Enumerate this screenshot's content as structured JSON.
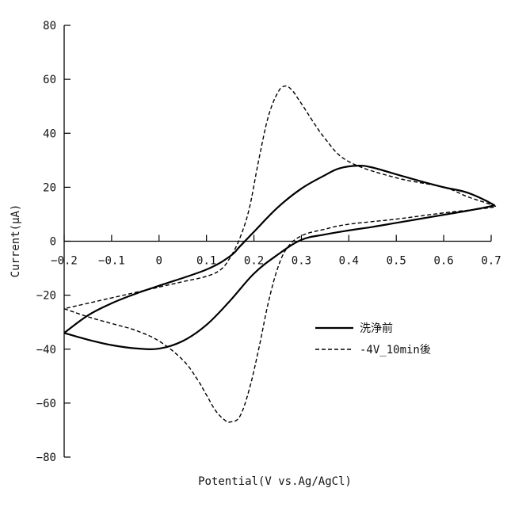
{
  "chart_data": {
    "type": "line",
    "xlabel": "Potential(V vs.Ag/AgCl)",
    "ylabel": "Current(μA)",
    "xlim": [
      -0.2,
      0.7
    ],
    "ylim": [
      -80,
      80
    ],
    "x_ticks": [
      "-0.2",
      "-0.1",
      "0",
      "0.1",
      "0.2",
      "0.3",
      "0.4",
      "0.5",
      "0.6",
      "0.7"
    ],
    "y_ticks": [
      "80",
      "60",
      "40",
      "20",
      "0",
      "-20",
      "-40",
      "-60",
      "-80"
    ],
    "grid": false,
    "legend_position": "right-center",
    "series": [
      {
        "name": "洗浄前",
        "style": "solid",
        "color": "#000000",
        "points": [
          [
            -0.2,
            -34
          ],
          [
            -0.15,
            -36.5
          ],
          [
            -0.1,
            -38.5
          ],
          [
            -0.05,
            -39.7
          ],
          [
            0.0,
            -39.8
          ],
          [
            0.05,
            -37
          ],
          [
            0.1,
            -31
          ],
          [
            0.15,
            -22
          ],
          [
            0.2,
            -12
          ],
          [
            0.25,
            -5
          ],
          [
            0.3,
            0.5
          ],
          [
            0.35,
            2.5
          ],
          [
            0.4,
            4
          ],
          [
            0.45,
            5.3
          ],
          [
            0.5,
            6.8
          ],
          [
            0.55,
            8.3
          ],
          [
            0.6,
            9.8
          ],
          [
            0.65,
            11.3
          ],
          [
            0.7,
            13
          ],
          [
            0.7,
            14
          ],
          [
            0.65,
            18
          ],
          [
            0.6,
            20
          ],
          [
            0.55,
            22.3
          ],
          [
            0.5,
            24.8
          ],
          [
            0.45,
            27.3
          ],
          [
            0.42,
            28
          ],
          [
            0.38,
            27
          ],
          [
            0.35,
            24.5
          ],
          [
            0.3,
            19.5
          ],
          [
            0.25,
            12.5
          ],
          [
            0.2,
            3.5
          ],
          [
            0.17,
            -2
          ],
          [
            0.15,
            -5.5
          ],
          [
            0.1,
            -10.5
          ],
          [
            0.0,
            -16.5
          ],
          [
            -0.05,
            -19.5
          ],
          [
            -0.1,
            -23
          ],
          [
            -0.15,
            -27.5
          ],
          [
            -0.2,
            -34
          ]
        ]
      },
      {
        "name": "-4V_10min後",
        "style": "dashed",
        "color": "#000000",
        "points": [
          [
            -0.2,
            -25
          ],
          [
            -0.15,
            -28
          ],
          [
            -0.1,
            -30.5
          ],
          [
            -0.05,
            -33
          ],
          [
            0.0,
            -37
          ],
          [
            0.05,
            -44
          ],
          [
            0.08,
            -51
          ],
          [
            0.1,
            -57
          ],
          [
            0.12,
            -63
          ],
          [
            0.14,
            -66.5
          ],
          [
            0.15,
            -67
          ],
          [
            0.17,
            -65
          ],
          [
            0.19,
            -55
          ],
          [
            0.21,
            -40
          ],
          [
            0.23,
            -23
          ],
          [
            0.25,
            -10
          ],
          [
            0.27,
            -2.5
          ],
          [
            0.3,
            2
          ],
          [
            0.35,
            4.5
          ],
          [
            0.4,
            6.3
          ],
          [
            0.5,
            8.2
          ],
          [
            0.6,
            10.5
          ],
          [
            0.7,
            12.5
          ],
          [
            0.7,
            13.5
          ],
          [
            0.65,
            16.5
          ],
          [
            0.6,
            20
          ],
          [
            0.5,
            23.5
          ],
          [
            0.4,
            29.5
          ],
          [
            0.35,
            38
          ],
          [
            0.3,
            51
          ],
          [
            0.28,
            56
          ],
          [
            0.265,
            57.5
          ],
          [
            0.25,
            55
          ],
          [
            0.23,
            46
          ],
          [
            0.21,
            30
          ],
          [
            0.19,
            12
          ],
          [
            0.17,
            1
          ],
          [
            0.15,
            -6
          ],
          [
            0.13,
            -10.5
          ],
          [
            0.1,
            -13
          ],
          [
            0.05,
            -15
          ],
          [
            0.0,
            -17
          ],
          [
            -0.05,
            -19
          ],
          [
            -0.1,
            -21
          ],
          [
            -0.15,
            -23
          ],
          [
            -0.2,
            -25
          ]
        ]
      }
    ]
  }
}
